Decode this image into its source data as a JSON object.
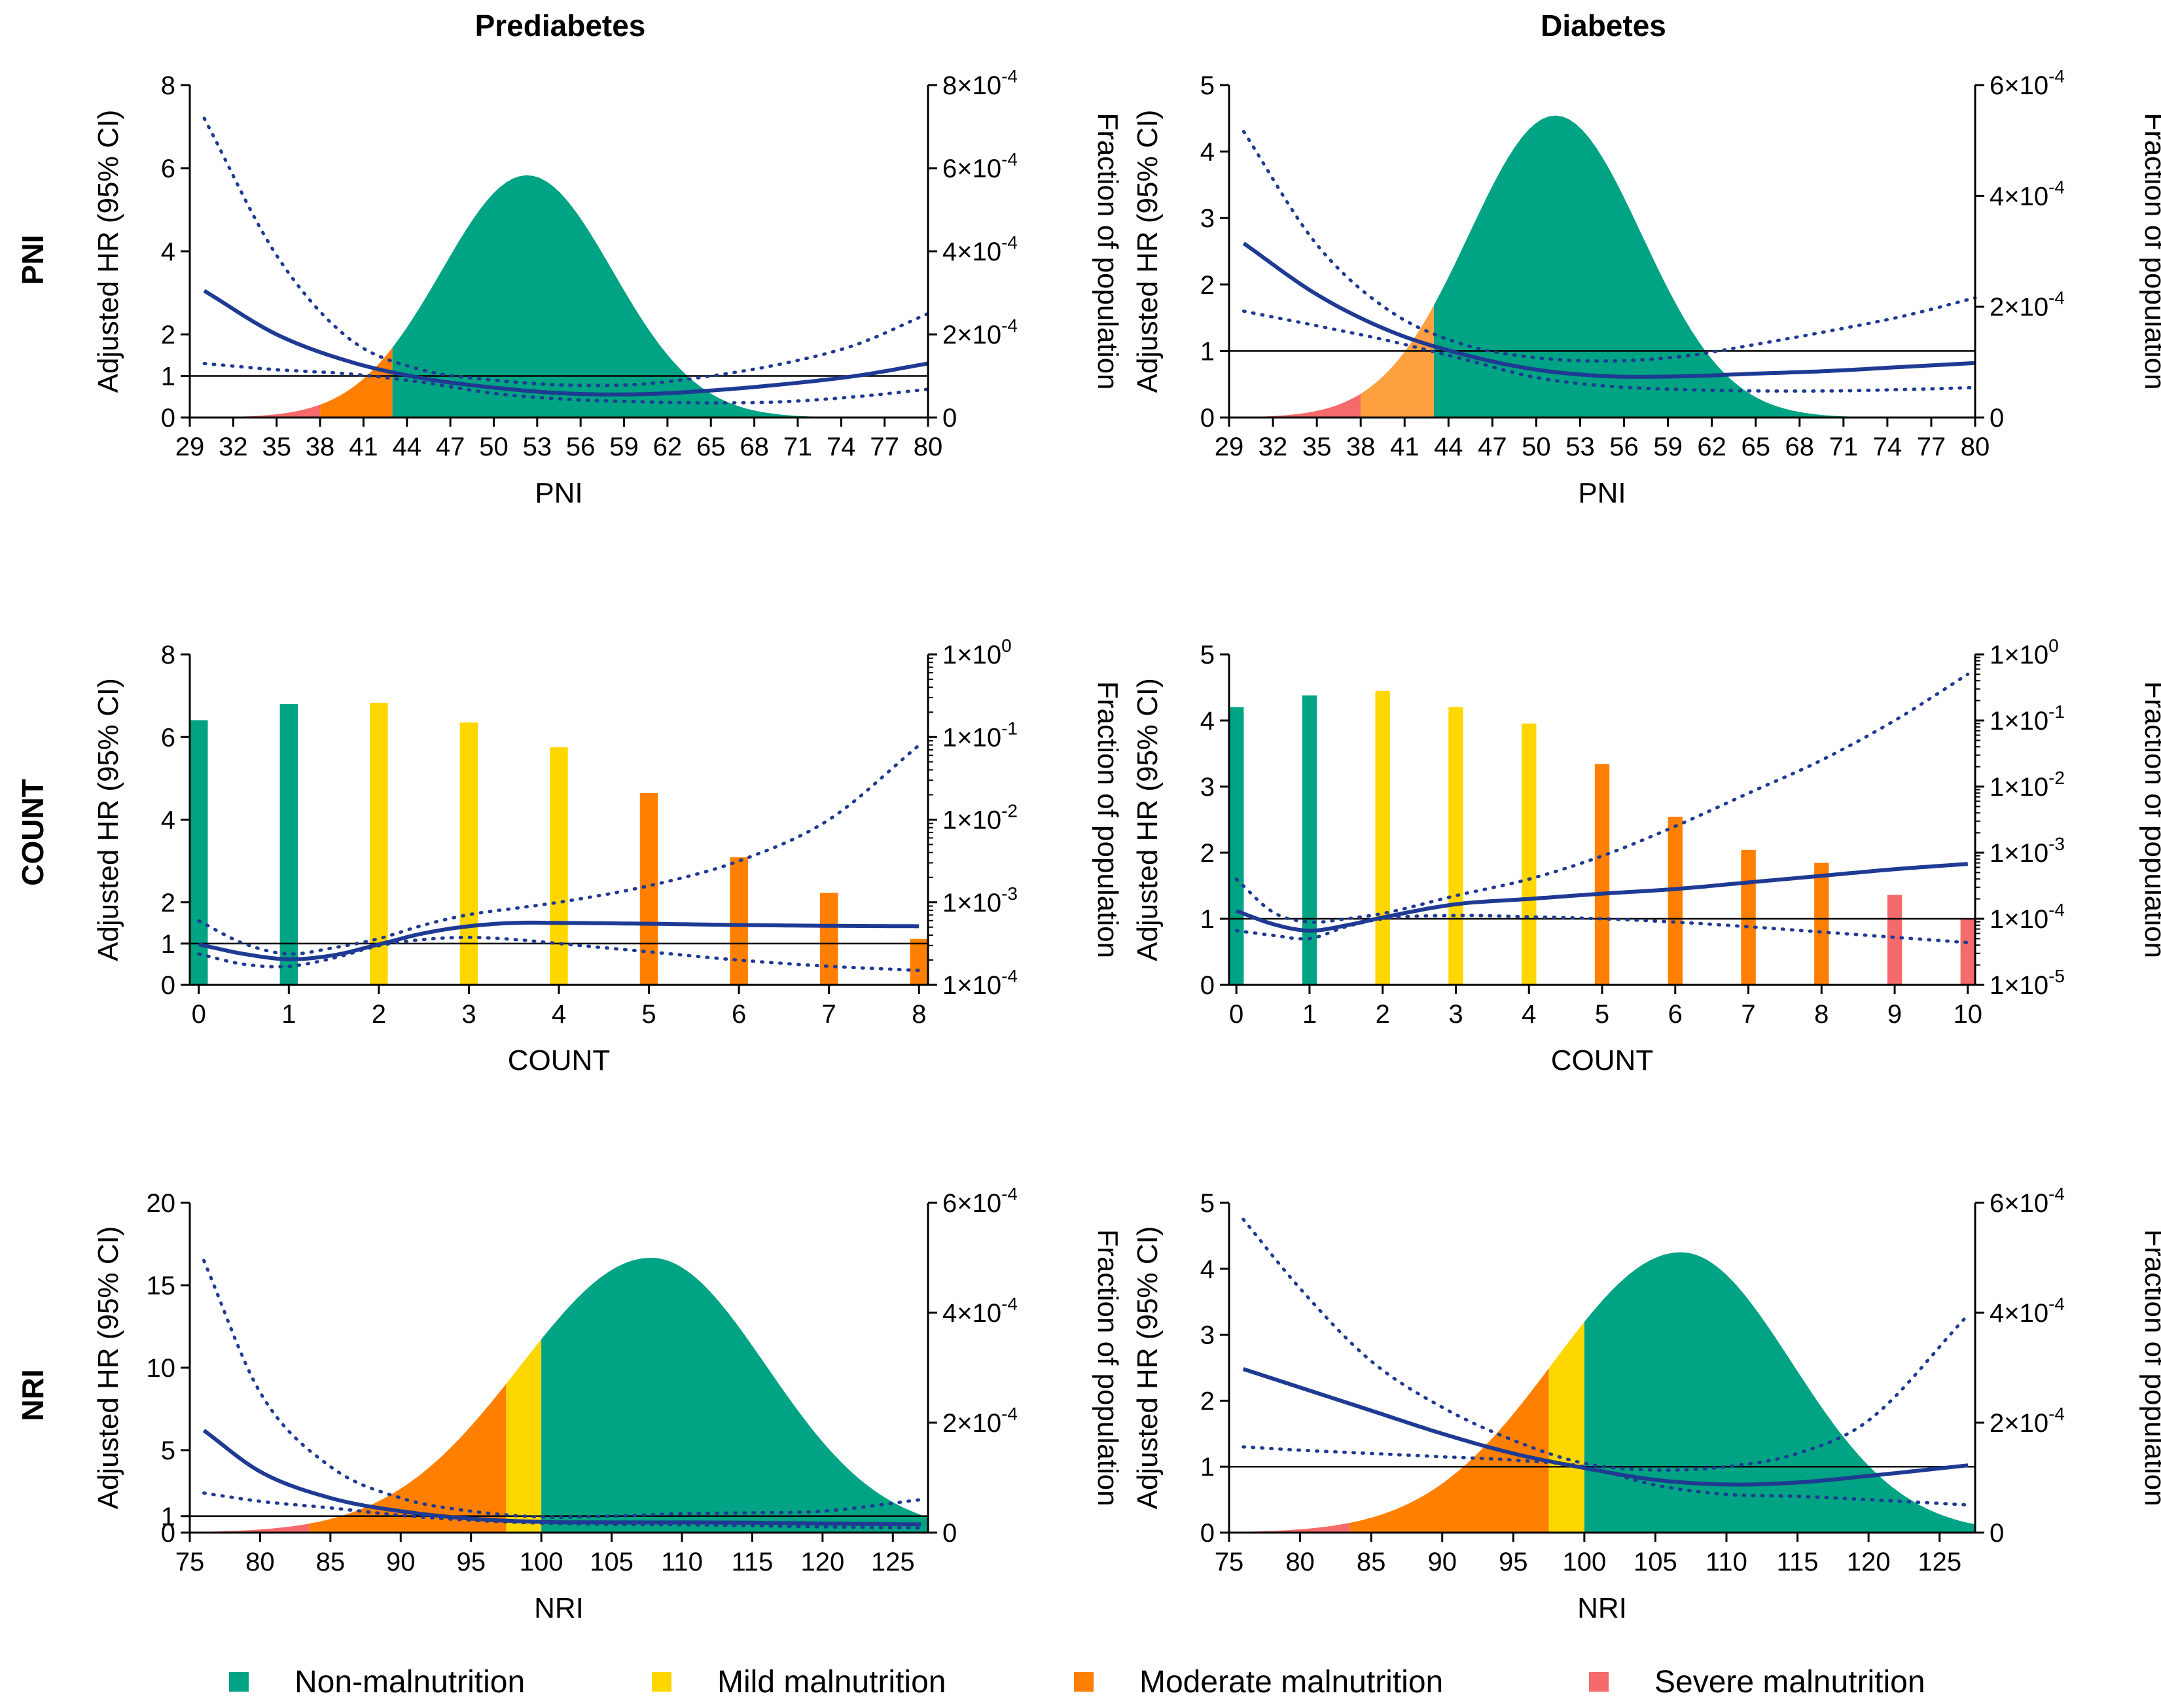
{
  "figure": {
    "col_titles": [
      "Prediabetes",
      "Diabetes"
    ],
    "row_labels": [
      "PNI",
      "COUNT",
      "NRI"
    ],
    "colors": {
      "non": "#00A383",
      "mild": "#FFD700",
      "moderate": "#FF8000",
      "moderate_light": "#FFA040",
      "severe": "#F56A6A",
      "curve": "#1F3A93",
      "ref": "#000000"
    },
    "legend": [
      {
        "label": "Non-malnutrition",
        "color": "#00A383"
      },
      {
        "label": "Mild malnutrition",
        "color": "#FFD700"
      },
      {
        "label": "Moderate malnutrition",
        "color": "#FF8000"
      },
      {
        "label": "Severe malnutrition",
        "color": "#F56A6A"
      }
    ]
  },
  "chart_data": [
    {
      "id": "pni_prediabetes",
      "type": "area",
      "title": "Prediabetes",
      "row": "PNI",
      "xlabel": "PNI",
      "ylabel": "Adjusted HR (95% CI)",
      "y2label": "Fraction of population",
      "xlim": [
        29,
        80
      ],
      "xticks": [
        29,
        32,
        35,
        38,
        41,
        44,
        47,
        50,
        53,
        56,
        59,
        62,
        65,
        68,
        71,
        74,
        77,
        80
      ],
      "ylim": [
        0,
        8
      ],
      "yticks": [
        0,
        1,
        2,
        4,
        6,
        8
      ],
      "y2_scale": "linear",
      "y2lim": [
        0,
        0.0008
      ],
      "y2ticks": [
        0,
        0.0002,
        0.0004,
        0.0006,
        0.0008
      ],
      "y2ticklabels": [
        "0",
        "2×10^-4",
        "4×10^-4",
        "6×10^-4",
        "8×10^-4"
      ],
      "reference_line": 1,
      "distribution": {
        "mean": 52.3,
        "sd": 5.9,
        "peak": 0.000583
      },
      "category_cutoffs": [
        {
          "from": 29,
          "to": 38,
          "category": "severe"
        },
        {
          "from": 38,
          "to": 43,
          "category": "moderate"
        },
        {
          "from": 43,
          "to": 80,
          "category": "non"
        }
      ],
      "hr_curve": {
        "x": [
          30,
          35,
          40,
          45,
          50,
          55,
          60,
          65,
          70,
          75,
          80
        ],
        "hr": [
          3.05,
          2.0,
          1.35,
          0.95,
          0.72,
          0.58,
          0.56,
          0.65,
          0.8,
          1.0,
          1.3
        ],
        "upper": [
          7.2,
          3.9,
          1.9,
          1.15,
          0.9,
          0.78,
          0.8,
          1.0,
          1.3,
          1.75,
          2.5
        ],
        "lower": [
          1.3,
          1.15,
          1.05,
          0.85,
          0.58,
          0.44,
          0.38,
          0.35,
          0.38,
          0.5,
          0.68
        ]
      }
    },
    {
      "id": "pni_diabetes",
      "type": "area",
      "title": "Diabetes",
      "row": "PNI",
      "xlabel": "PNI",
      "ylabel": "Adjusted HR (95% CI)",
      "y2label": "Fraction of population",
      "xlim": [
        29,
        80
      ],
      "xticks": [
        29,
        32,
        35,
        38,
        41,
        44,
        47,
        50,
        53,
        56,
        59,
        62,
        65,
        68,
        71,
        74,
        77,
        80
      ],
      "ylim": [
        0,
        5
      ],
      "yticks": [
        0,
        1,
        2,
        3,
        4,
        5
      ],
      "y2_scale": "linear",
      "y2lim": [
        0,
        0.0006
      ],
      "y2ticks": [
        0,
        0.0002,
        0.0004,
        0.0006
      ],
      "y2ticklabels": [
        "0",
        "2×10^-4",
        "4×10^-4",
        "6×10^-4"
      ],
      "reference_line": 1,
      "distribution": {
        "mean": 51.3,
        "sd": 5.9,
        "peak": 0.000545
      },
      "category_cutoffs": [
        {
          "from": 29,
          "to": 38,
          "category": "severe"
        },
        {
          "from": 38,
          "to": 43,
          "category": "moderate_light"
        },
        {
          "from": 43,
          "to": 80,
          "category": "non"
        }
      ],
      "hr_curve": {
        "x": [
          30,
          35,
          40,
          45,
          50,
          55,
          60,
          65,
          70,
          75,
          80
        ],
        "hr": [
          2.62,
          1.85,
          1.3,
          0.95,
          0.72,
          0.62,
          0.62,
          0.66,
          0.7,
          0.76,
          0.82
        ],
        "upper": [
          4.3,
          2.6,
          1.6,
          1.1,
          0.9,
          0.85,
          0.92,
          1.1,
          1.3,
          1.52,
          1.8
        ],
        "lower": [
          1.6,
          1.38,
          1.15,
          0.88,
          0.6,
          0.47,
          0.42,
          0.4,
          0.4,
          0.42,
          0.45
        ]
      }
    },
    {
      "id": "count_prediabetes",
      "type": "bar",
      "title": "Prediabetes",
      "row": "COUNT",
      "xlabel": "COUNT",
      "ylabel": "Adjusted HR (95% CI)",
      "y2label": "Fraction of population",
      "xlim": [
        -0.1,
        8.1
      ],
      "xticks": [
        0,
        1,
        2,
        3,
        4,
        5,
        6,
        7,
        8
      ],
      "ylim": [
        0,
        8
      ],
      "yticks": [
        0,
        1,
        2,
        4,
        6,
        8
      ],
      "y2_scale": "log",
      "y2lim": [
        0.0001,
        1
      ],
      "y2ticks": [
        0.0001,
        0.001,
        0.01,
        0.1,
        1
      ],
      "y2ticklabels": [
        "1×10^-4",
        "1×10^-3",
        "1×10^-2",
        "1×10^-1",
        "1×10^0"
      ],
      "reference_line": 1,
      "categories": [
        "0",
        "1",
        "2",
        "3",
        "4",
        "5",
        "6",
        "7",
        "8"
      ],
      "values": [
        0.16,
        0.25,
        0.26,
        0.15,
        0.075,
        0.021,
        0.0035,
        0.0013,
        0.00036
      ],
      "bar_categories": [
        "non",
        "non",
        "mild",
        "mild",
        "mild",
        "moderate",
        "moderate",
        "moderate",
        "moderate"
      ],
      "hr_curve": {
        "x": [
          0,
          0.5,
          1,
          1.5,
          2,
          2.5,
          3,
          3.5,
          4,
          5,
          6,
          7,
          8
        ],
        "hr": [
          0.98,
          0.75,
          0.62,
          0.72,
          0.98,
          1.25,
          1.42,
          1.5,
          1.5,
          1.48,
          1.45,
          1.43,
          1.42
        ],
        "upper": [
          1.55,
          1.0,
          0.75,
          0.9,
          1.12,
          1.45,
          1.7,
          1.85,
          2.0,
          2.4,
          3.0,
          4.0,
          5.8
        ],
        "lower": [
          0.75,
          0.5,
          0.45,
          0.65,
          0.95,
          1.1,
          1.15,
          1.1,
          1.0,
          0.8,
          0.6,
          0.45,
          0.35
        ]
      }
    },
    {
      "id": "count_diabetes",
      "type": "bar",
      "title": "Diabetes",
      "row": "COUNT",
      "xlabel": "COUNT",
      "ylabel": "Adjusted HR (95% CI)",
      "y2label": "Fraction of population",
      "xlim": [
        -0.1,
        10.1
      ],
      "xticks": [
        0,
        1,
        2,
        3,
        4,
        5,
        6,
        7,
        8,
        9,
        10
      ],
      "ylim": [
        0,
        5
      ],
      "yticks": [
        0,
        1,
        2,
        3,
        4,
        5
      ],
      "y2_scale": "log",
      "y2lim": [
        1e-05,
        1
      ],
      "y2ticks": [
        1e-05,
        0.0001,
        0.001,
        0.01,
        0.1,
        1
      ],
      "y2ticklabels": [
        "1×10^-5",
        "1×10^-4",
        "1×10^-3",
        "1×10^-2",
        "1×10^-1",
        "1×10^0"
      ],
      "reference_line": 1,
      "categories": [
        "0",
        "1",
        "2",
        "3",
        "4",
        "5",
        "6",
        "7",
        "8",
        "9",
        "10"
      ],
      "values": [
        0.16,
        0.24,
        0.28,
        0.16,
        0.09,
        0.022,
        0.0035,
        0.0011,
        0.0007,
        0.00023,
        0.0001
      ],
      "bar_categories": [
        "non",
        "non",
        "mild",
        "mild",
        "mild",
        "moderate",
        "moderate",
        "moderate",
        "moderate",
        "severe",
        "severe"
      ],
      "hr_curve": {
        "x": [
          0,
          0.5,
          1,
          1.5,
          2,
          3,
          4,
          5,
          6,
          7,
          8,
          9,
          10
        ],
        "hr": [
          1.12,
          0.92,
          0.82,
          0.9,
          1.02,
          1.22,
          1.3,
          1.38,
          1.45,
          1.55,
          1.65,
          1.75,
          1.83
        ],
        "upper": [
          1.6,
          1.1,
          0.95,
          1.0,
          1.08,
          1.35,
          1.6,
          1.95,
          2.4,
          2.9,
          3.4,
          4.0,
          4.7
        ],
        "lower": [
          0.82,
          0.75,
          0.7,
          0.88,
          1.0,
          1.05,
          1.03,
          1.0,
          0.95,
          0.88,
          0.8,
          0.72,
          0.64
        ]
      }
    },
    {
      "id": "nri_prediabetes",
      "type": "area",
      "title": "Prediabetes",
      "row": "NRI",
      "xlabel": "NRI",
      "ylabel": "Adjusted HR (95% CI)",
      "y2label": "Fraction of population",
      "xlim": [
        75,
        127.5
      ],
      "xticks": [
        75,
        80,
        85,
        90,
        95,
        100,
        105,
        110,
        115,
        120,
        125
      ],
      "ylim": [
        0,
        20
      ],
      "yticks": [
        0,
        1,
        5,
        10,
        15,
        20
      ],
      "y2_scale": "linear",
      "y2lim": [
        0,
        0.0006
      ],
      "y2ticks": [
        0,
        0.0002,
        0.0004,
        0.0006
      ],
      "y2ticklabels": [
        "0",
        "2×10^-4",
        "4×10^-4",
        "6×10^-4"
      ],
      "reference_line": 1,
      "distribution": {
        "mean": 107.8,
        "sd": 8.2,
        "peak": 0.0005,
        "left_sd": 9.3
      },
      "category_cutoffs": [
        {
          "from": 75,
          "to": 83.5,
          "category": "severe"
        },
        {
          "from": 83.5,
          "to": 97.5,
          "category": "moderate"
        },
        {
          "from": 97.5,
          "to": 100,
          "category": "mild"
        },
        {
          "from": 100,
          "to": 127.5,
          "category": "non"
        }
      ],
      "hr_curve": {
        "x": [
          76,
          80,
          85,
          90,
          95,
          100,
          105,
          110,
          115,
          120,
          127
        ],
        "hr": [
          6.2,
          3.7,
          2.1,
          1.3,
          0.85,
          0.65,
          0.62,
          0.62,
          0.6,
          0.55,
          0.5
        ],
        "upper": [
          16.5,
          8.5,
          4.0,
          2.1,
          1.3,
          0.95,
          1.0,
          1.15,
          1.2,
          1.3,
          2.0
        ],
        "lower": [
          2.4,
          1.9,
          1.5,
          1.05,
          0.75,
          0.58,
          0.5,
          0.48,
          0.42,
          0.35,
          0.28
        ]
      }
    },
    {
      "id": "nri_diabetes",
      "type": "area",
      "title": "Diabetes",
      "row": "NRI",
      "xlabel": "NRI",
      "ylabel": "Adjusted HR (95% CI)",
      "y2label": "Fraction of population",
      "xlim": [
        75,
        127.5
      ],
      "xticks": [
        75,
        80,
        85,
        90,
        95,
        100,
        105,
        110,
        115,
        120,
        125
      ],
      "ylim": [
        0,
        5
      ],
      "yticks": [
        0,
        1,
        2,
        3,
        4,
        5
      ],
      "y2_scale": "linear",
      "y2lim": [
        0,
        0.0006
      ],
      "y2ticks": [
        0,
        0.0002,
        0.0004,
        0.0006
      ],
      "y2ticklabels": [
        "0",
        "2×10^-4",
        "4×10^-4",
        "6×10^-4"
      ],
      "reference_line": 1,
      "distribution": {
        "mean": 106.8,
        "sd": 7.8,
        "peak": 0.00051,
        "left_sd": 9.0
      },
      "category_cutoffs": [
        {
          "from": 75,
          "to": 83.5,
          "category": "severe"
        },
        {
          "from": 83.5,
          "to": 97.5,
          "category": "moderate"
        },
        {
          "from": 97.5,
          "to": 100,
          "category": "mild"
        },
        {
          "from": 100,
          "to": 127.5,
          "category": "non"
        }
      ],
      "hr_curve": {
        "x": [
          76,
          80,
          85,
          90,
          95,
          100,
          105,
          110,
          115,
          120,
          127
        ],
        "hr": [
          2.48,
          2.2,
          1.85,
          1.5,
          1.2,
          0.98,
          0.8,
          0.73,
          0.76,
          0.86,
          1.02
        ],
        "upper": [
          4.75,
          3.7,
          2.6,
          1.9,
          1.4,
          1.05,
          0.95,
          1.0,
          1.2,
          1.7,
          3.3
        ],
        "lower": [
          1.3,
          1.25,
          1.2,
          1.15,
          1.1,
          1.0,
          0.72,
          0.58,
          0.55,
          0.5,
          0.42
        ]
      }
    }
  ]
}
